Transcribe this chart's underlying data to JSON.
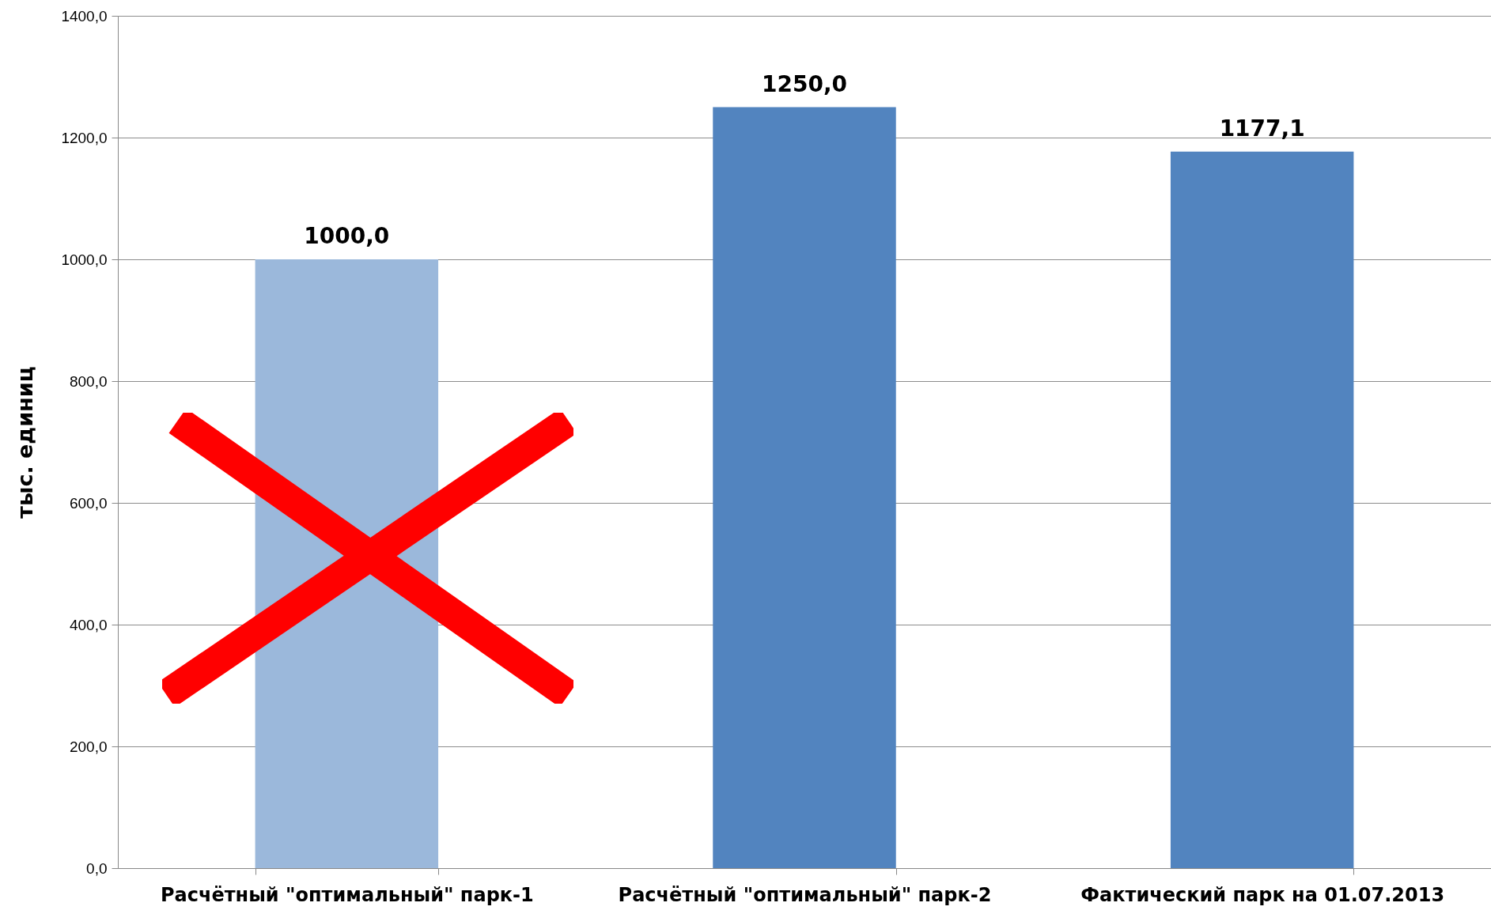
{
  "chart_data": {
    "type": "bar",
    "ylabel": "тыс. единиц",
    "categories": [
      "Расчётный \"оптимальный\" парк-1",
      "Расчётный \"оптимальный\" парк-2",
      "Фактический парк на 01.07.2013"
    ],
    "values": [
      1000.0,
      1250.0,
      1177.1
    ],
    "colors": [
      "#9bb8db",
      "#5284bf",
      "#5284bf"
    ],
    "value_labels": [
      "1000,0",
      "1250,0",
      "1177,1"
    ],
    "ylim": [
      0,
      1400
    ],
    "yticks": [
      {
        "value": 0,
        "label": "0,0"
      },
      {
        "value": 200,
        "label": "200,0"
      },
      {
        "value": 400,
        "label": "400,0"
      },
      {
        "value": 600,
        "label": "600,0"
      },
      {
        "value": 800,
        "label": "800,0"
      },
      {
        "value": 1000,
        "label": "1000,0"
      },
      {
        "value": 1200,
        "label": "1200,0"
      },
      {
        "value": 1400,
        "label": "1400,0"
      }
    ],
    "grid": "y",
    "legend": false
  }
}
